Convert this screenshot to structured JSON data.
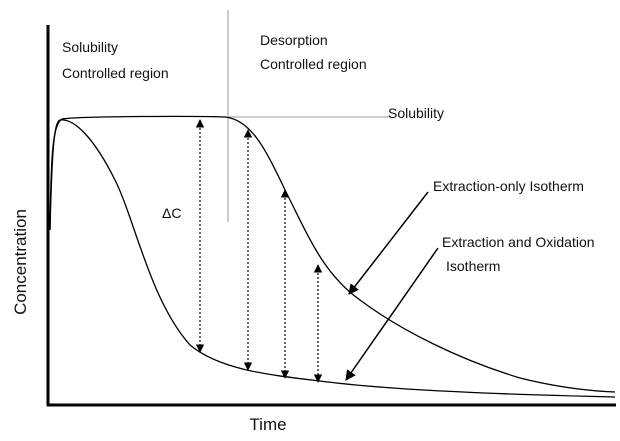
{
  "axes": {
    "x_label": "Time",
    "y_label": "Concentration"
  },
  "regions": [
    {
      "lines": [
        "Solubility",
        "Controlled region"
      ]
    },
    {
      "lines": [
        "Desorption",
        "Controlled region"
      ]
    }
  ],
  "labels": {
    "solubility": "Solubility",
    "delta_c": "ΔC",
    "extraction_only": "Extraction-only Isotherm",
    "extraction_oxidation": [
      "Extraction and Oxidation",
      "Isotherm"
    ]
  }
}
